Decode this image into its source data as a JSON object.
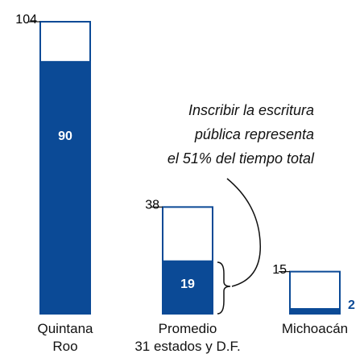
{
  "chart_data": {
    "type": "bar",
    "categories": [
      "Quintana\nRoo",
      "Promedio\n31 estados y D.F.",
      "Michoacán"
    ],
    "totals": [
      104,
      38,
      15
    ],
    "values": [
      90,
      19,
      2
    ],
    "color": "#0b4a96",
    "ylim": [
      0,
      104
    ],
    "annotation": "Inscribir la escritura\npública representa\nel 51% del tiempo total"
  }
}
